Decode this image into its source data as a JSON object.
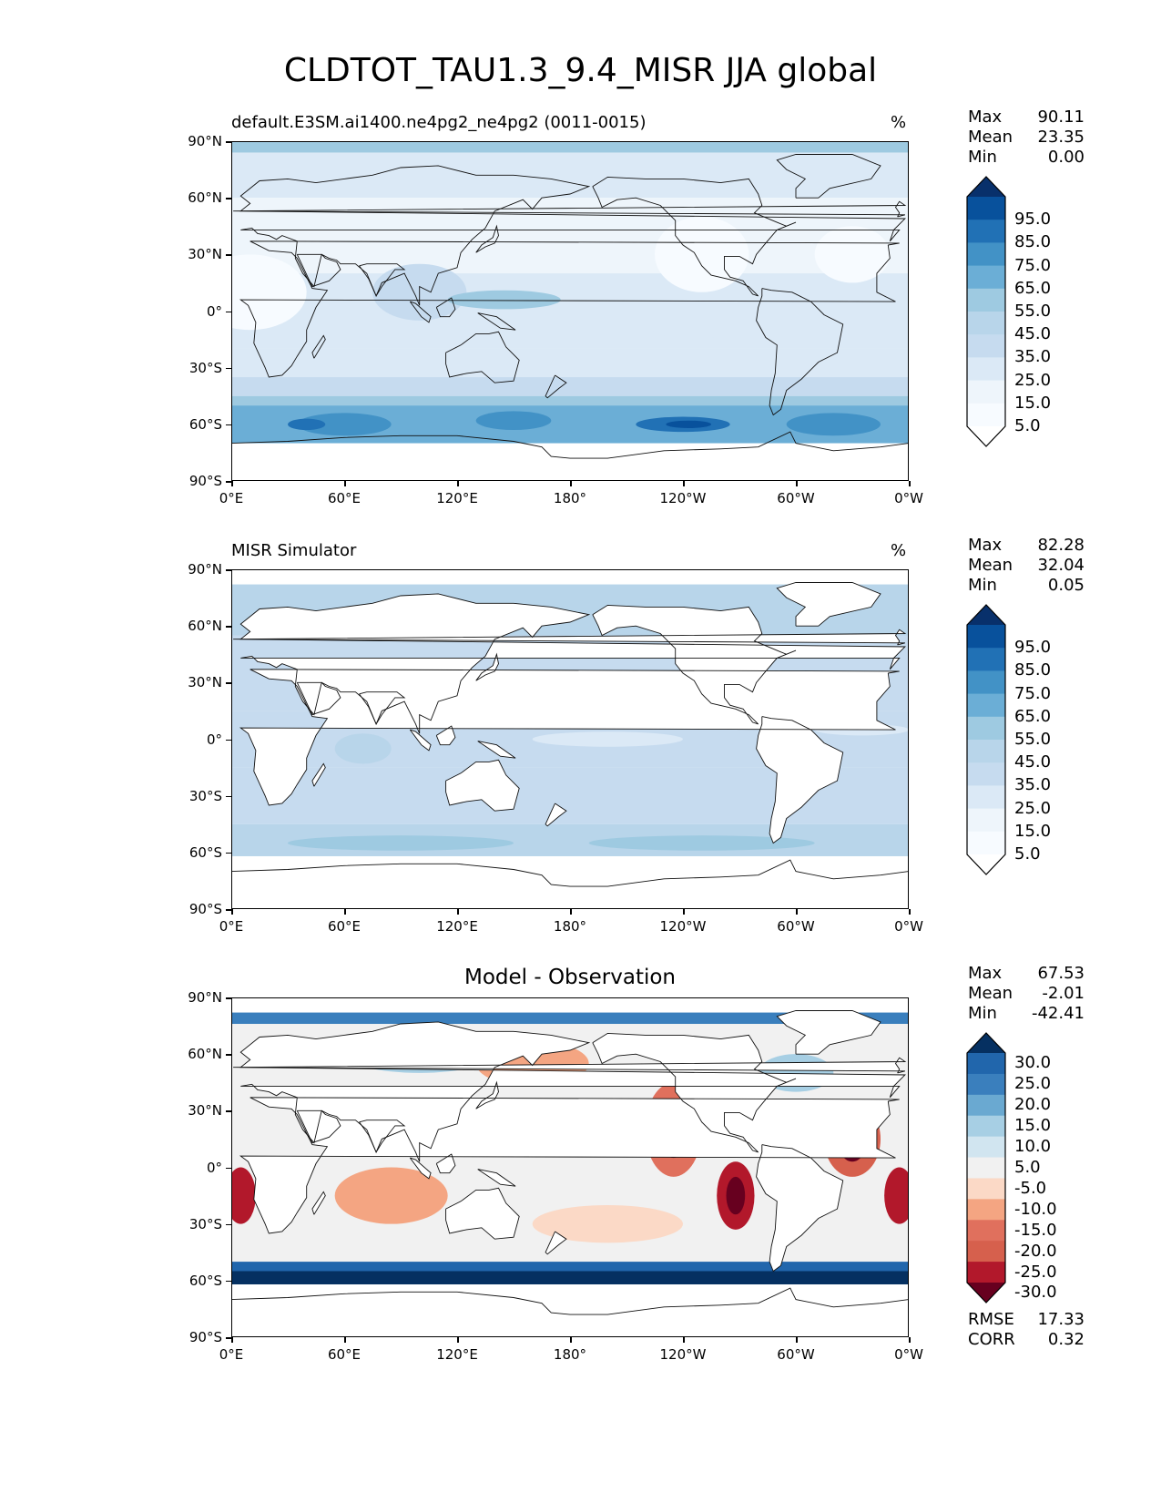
{
  "title": "CLDTOT_TAU1.3_9.4_MISR JJA global",
  "axes": {
    "y_ticks": [
      "90°N",
      "60°N",
      "30°N",
      "0°",
      "30°S",
      "60°S",
      "90°S"
    ],
    "x_ticks": [
      "0°E",
      "60°E",
      "120°E",
      "180°",
      "120°W",
      "60°W",
      "0°W"
    ]
  },
  "panels": [
    {
      "title": "default.E3SM.ai1400.ne4pg2_ne4pg2 (0011-0015)",
      "units": "%",
      "stats": [
        {
          "label": "Max",
          "value": "90.11"
        },
        {
          "label": "Mean",
          "value": "23.35"
        },
        {
          "label": "Min",
          "value": "0.00"
        }
      ],
      "colorbar": {
        "labels": [
          "95.0",
          "85.0",
          "75.0",
          "65.0",
          "55.0",
          "45.0",
          "35.0",
          "25.0",
          "15.0",
          "5.0"
        ],
        "colors": [
          "#08306b",
          "#08519c",
          "#2171b5",
          "#4292c6",
          "#6baed6",
          "#9ecae1",
          "#b8d5ea",
          "#c6dbef",
          "#dbe9f6",
          "#eef5fb",
          "#f7fbff",
          "#ffffff"
        ]
      }
    },
    {
      "title": "MISR Simulator",
      "units": "%",
      "stats": [
        {
          "label": "Max",
          "value": "82.28"
        },
        {
          "label": "Mean",
          "value": "32.04"
        },
        {
          "label": "Min",
          "value": "0.05"
        }
      ],
      "colorbar": {
        "labels": [
          "95.0",
          "85.0",
          "75.0",
          "65.0",
          "55.0",
          "45.0",
          "35.0",
          "25.0",
          "15.0",
          "5.0"
        ],
        "colors": [
          "#08306b",
          "#08519c",
          "#2171b5",
          "#4292c6",
          "#6baed6",
          "#9ecae1",
          "#b8d5ea",
          "#c6dbef",
          "#dbe9f6",
          "#eef5fb",
          "#f7fbff",
          "#ffffff"
        ]
      }
    },
    {
      "title": "Model - Observation",
      "units": "",
      "stats": [
        {
          "label": "Max",
          "value": "67.53"
        },
        {
          "label": "Mean",
          "value": "-2.01"
        },
        {
          "label": "Min",
          "value": "-42.41"
        }
      ],
      "extra_stats": [
        {
          "label": "RMSE",
          "value": "17.33"
        },
        {
          "label": "CORR",
          "value": "0.32"
        }
      ],
      "colorbar": {
        "labels": [
          "30.0",
          "25.0",
          "20.0",
          "15.0",
          "10.0",
          "5.0",
          "-5.0",
          "-10.0",
          "-15.0",
          "-20.0",
          "-25.0",
          "-30.0"
        ],
        "colors": [
          "#053061",
          "#2166ac",
          "#3a7fbd",
          "#6aa9d1",
          "#a7cfe4",
          "#d1e5f0",
          "#f1f1f1",
          "#fbd9c6",
          "#f4a582",
          "#e0705d",
          "#d6604d",
          "#b2182b",
          "#67001f"
        ]
      }
    }
  ]
}
